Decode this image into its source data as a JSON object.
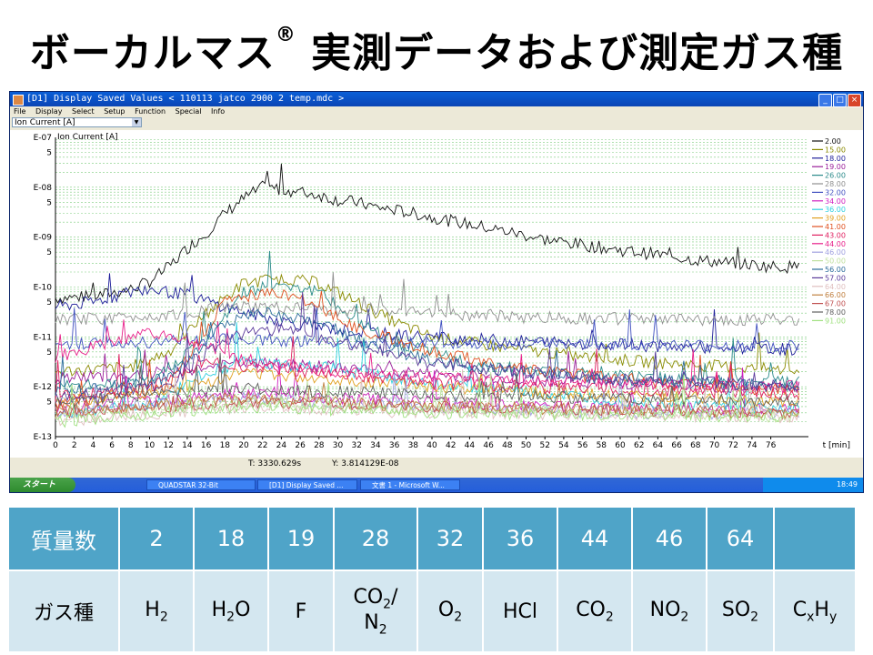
{
  "slide": {
    "title": "ボーカルマス",
    "title_mark": "®",
    "title_rest": " 実測データおよび測定ガス種"
  },
  "window": {
    "title": "[D1] Display Saved Values  < 110113 jatco 2900 2 temp.mdc >",
    "menu": [
      "File",
      "Display",
      "Select",
      "Setup",
      "Function",
      "Special",
      "Info"
    ],
    "combo_value": "Ion Current [A]",
    "status_t": "T: 3330.629s",
    "status_y": "Y: 3.814129E-08"
  },
  "taskbar": {
    "start": "スタート",
    "items": [
      "QUADSTAR 32-Bit",
      "[D1] Display Saved ...",
      "文書 1 - Microsoft W..."
    ],
    "clock": "18:49"
  },
  "chart_data": {
    "type": "line",
    "title": "Ion Current [A]",
    "xlabel": "t [min]",
    "x_ticks": [
      0,
      2,
      4,
      6,
      8,
      10,
      12,
      14,
      16,
      18,
      20,
      22,
      24,
      26,
      28,
      30,
      32,
      34,
      36,
      38,
      40,
      42,
      44,
      46,
      48,
      50,
      52,
      54,
      56,
      58,
      60,
      62,
      64,
      66,
      68,
      70,
      72,
      74,
      76
    ],
    "xlim": [
      0,
      80
    ],
    "yscale": "log",
    "ylim": [
      1e-13,
      1e-07
    ],
    "y_tick_labels": [
      "E-07",
      "5",
      "E-08",
      "5",
      "E-09",
      "5",
      "E-10",
      "5",
      "E-11",
      "5",
      "E-12",
      "5",
      "E-13"
    ],
    "grid": "horizontal dashed",
    "legend_position": "right",
    "series": [
      {
        "name": "2.00",
        "color": "#111111",
        "values": [
          [
            0,
            6e-11
          ],
          [
            4,
            6.5e-11
          ],
          [
            8,
            9e-11
          ],
          [
            10,
            1.3e-10
          ],
          [
            12,
            2.5e-10
          ],
          [
            14,
            6e-10
          ],
          [
            16,
            1.2e-09
          ],
          [
            18,
            3e-09
          ],
          [
            20,
            6e-09
          ],
          [
            22,
            1e-08
          ],
          [
            24,
            9e-09
          ],
          [
            26,
            8e-09
          ],
          [
            28,
            7e-09
          ],
          [
            30,
            5.5e-09
          ],
          [
            32,
            5e-09
          ],
          [
            34,
            4e-09
          ],
          [
            36,
            3.5e-09
          ],
          [
            38,
            3e-09
          ],
          [
            40,
            2.5e-09
          ],
          [
            44,
            1.8e-09
          ],
          [
            48,
            1.3e-09
          ],
          [
            52,
            9e-10
          ],
          [
            56,
            7e-10
          ],
          [
            60,
            5.5e-10
          ],
          [
            64,
            4.5e-10
          ],
          [
            68,
            3.5e-10
          ],
          [
            72,
            3e-10
          ],
          [
            76,
            2.6e-10
          ],
          [
            80,
            2.5e-10
          ]
        ]
      },
      {
        "name": "15.00",
        "color": "#8a8a00",
        "values": [
          [
            0,
            2e-12
          ],
          [
            8,
            2.5e-12
          ],
          [
            12,
            5e-12
          ],
          [
            16,
            3e-11
          ],
          [
            20,
            1.2e-10
          ],
          [
            24,
            1.5e-10
          ],
          [
            28,
            1.2e-10
          ],
          [
            32,
            5e-11
          ],
          [
            36,
            2e-11
          ],
          [
            40,
            1e-11
          ],
          [
            48,
            6e-12
          ],
          [
            56,
            4e-12
          ],
          [
            64,
            3e-12
          ],
          [
            72,
            2.5e-12
          ],
          [
            80,
            2e-12
          ]
        ]
      },
      {
        "name": "18.00",
        "color": "#1e1e9a",
        "values": [
          [
            0,
            4e-11
          ],
          [
            4,
            5e-11
          ],
          [
            8,
            8e-11
          ],
          [
            10,
            9e-11
          ],
          [
            14,
            7e-11
          ],
          [
            18,
            4e-11
          ],
          [
            22,
            2.5e-11
          ],
          [
            26,
            1.8e-11
          ],
          [
            30,
            1.4e-11
          ],
          [
            36,
            1.1e-11
          ],
          [
            44,
            9e-12
          ],
          [
            52,
            8e-12
          ],
          [
            60,
            7e-12
          ],
          [
            70,
            6e-12
          ],
          [
            80,
            5.5e-12
          ]
        ]
      },
      {
        "name": "19.00",
        "color": "#9a1e9a",
        "values": [
          [
            0,
            1.5e-12
          ],
          [
            10,
            1.8e-12
          ],
          [
            20,
            3e-12
          ],
          [
            30,
            2.5e-12
          ],
          [
            40,
            1.8e-12
          ],
          [
            50,
            1.4e-12
          ],
          [
            60,
            1.2e-12
          ],
          [
            70,
            1e-12
          ],
          [
            80,
            1e-12
          ]
        ]
      },
      {
        "name": "26.00",
        "color": "#2a8a8a",
        "values": [
          [
            0,
            1e-12
          ],
          [
            10,
            1.2e-12
          ],
          [
            16,
            1e-11
          ],
          [
            20,
            8e-11
          ],
          [
            24,
            1.2e-10
          ],
          [
            28,
            8e-11
          ],
          [
            32,
            2e-11
          ],
          [
            36,
            8e-12
          ],
          [
            44,
            3e-12
          ],
          [
            52,
            2e-12
          ],
          [
            64,
            1.5e-12
          ],
          [
            80,
            1.2e-12
          ]
        ]
      },
      {
        "name": "28.00",
        "color": "#909090",
        "values": [
          [
            0,
            2.2e-11
          ],
          [
            4,
            2.3e-11
          ],
          [
            8,
            2.5e-11
          ],
          [
            12,
            2.8e-11
          ],
          [
            16,
            3.5e-11
          ],
          [
            20,
            4e-11
          ],
          [
            24,
            3.8e-11
          ],
          [
            30,
            3.5e-11
          ],
          [
            40,
            3e-11
          ],
          [
            50,
            2.5e-11
          ],
          [
            60,
            2.3e-11
          ],
          [
            70,
            2.2e-11
          ],
          [
            80,
            2.2e-11
          ]
        ]
      },
      {
        "name": "32.00",
        "color": "#4050c0",
        "values": [
          [
            0,
            7e-12
          ],
          [
            10,
            8e-12
          ],
          [
            20,
            9e-12
          ],
          [
            30,
            8e-12
          ],
          [
            40,
            7.5e-12
          ],
          [
            50,
            7e-12
          ],
          [
            60,
            7e-12
          ],
          [
            70,
            6.5e-12
          ],
          [
            80,
            6.5e-12
          ]
        ]
      },
      {
        "name": "34.00",
        "color": "#d020c0",
        "values": [
          [
            0,
            4e-13
          ],
          [
            10,
            5e-13
          ],
          [
            20,
            8e-13
          ],
          [
            30,
            6e-13
          ],
          [
            40,
            5e-13
          ],
          [
            50,
            4e-13
          ],
          [
            60,
            4e-13
          ],
          [
            70,
            3.5e-13
          ],
          [
            80,
            3.5e-13
          ]
        ]
      },
      {
        "name": "36.00",
        "color": "#30d0e0",
        "values": [
          [
            0,
            3e-13
          ],
          [
            10,
            4e-13
          ],
          [
            16,
            2e-12
          ],
          [
            20,
            3e-12
          ],
          [
            28,
            2.5e-12
          ],
          [
            36,
            1.5e-12
          ],
          [
            44,
            1e-12
          ],
          [
            56,
            6e-13
          ],
          [
            70,
            4e-13
          ],
          [
            80,
            3.5e-13
          ]
        ]
      },
      {
        "name": "39.00",
        "color": "#e0a020",
        "values": [
          [
            0,
            5e-13
          ],
          [
            12,
            8e-13
          ],
          [
            20,
            2e-12
          ],
          [
            28,
            1.5e-12
          ],
          [
            40,
            1e-12
          ],
          [
            56,
            7e-13
          ],
          [
            80,
            5e-13
          ]
        ]
      },
      {
        "name": "41.00",
        "color": "#e05020",
        "values": [
          [
            0,
            4e-13
          ],
          [
            12,
            1e-12
          ],
          [
            18,
            5e-11
          ],
          [
            22,
            8e-11
          ],
          [
            26,
            6e-11
          ],
          [
            32,
            1.5e-11
          ],
          [
            40,
            5e-12
          ],
          [
            52,
            2e-12
          ],
          [
            64,
            1.2e-12
          ],
          [
            80,
            8e-13
          ]
        ]
      },
      {
        "name": "43.00",
        "color": "#e02060",
        "values": [
          [
            0,
            6e-13
          ],
          [
            10,
            1e-12
          ],
          [
            16,
            3e-12
          ],
          [
            22,
            2.5e-12
          ],
          [
            30,
            1.8e-12
          ],
          [
            40,
            1.2e-12
          ],
          [
            56,
            9e-13
          ],
          [
            80,
            7e-13
          ]
        ]
      },
      {
        "name": "44.00",
        "color": "#e8208a",
        "values": [
          [
            0,
            4e-12
          ],
          [
            4,
            6e-12
          ],
          [
            8,
            1e-11
          ],
          [
            10,
            1.2e-11
          ],
          [
            12,
            1e-11
          ],
          [
            16,
            6e-12
          ],
          [
            22,
            3e-12
          ],
          [
            30,
            2e-12
          ],
          [
            40,
            1.5e-12
          ],
          [
            56,
            1.2e-12
          ],
          [
            80,
            1e-12
          ]
        ]
      },
      {
        "name": "46.00",
        "color": "#a0a0e0",
        "values": [
          [
            0,
            3e-13
          ],
          [
            20,
            6e-13
          ],
          [
            40,
            4e-13
          ],
          [
            60,
            3e-13
          ],
          [
            80,
            3e-13
          ]
        ]
      },
      {
        "name": "50.00",
        "color": "#c0e0a0",
        "values": [
          [
            0,
            2.5e-13
          ],
          [
            20,
            5e-13
          ],
          [
            40,
            3.5e-13
          ],
          [
            60,
            3e-13
          ],
          [
            80,
            2.5e-13
          ]
        ]
      },
      {
        "name": "56.00",
        "color": "#2a6a9a",
        "values": [
          [
            0,
            8e-13
          ],
          [
            12,
            1.5e-12
          ],
          [
            18,
            2e-11
          ],
          [
            22,
            3e-11
          ],
          [
            28,
            2e-11
          ],
          [
            34,
            6e-12
          ],
          [
            44,
            2.5e-12
          ],
          [
            56,
            1.5e-12
          ],
          [
            80,
            1e-12
          ]
        ]
      },
      {
        "name": "57.00",
        "color": "#5a3a9a",
        "values": [
          [
            0,
            6e-13
          ],
          [
            12,
            1e-12
          ],
          [
            18,
            1e-11
          ],
          [
            24,
            1.5e-11
          ],
          [
            30,
            8e-12
          ],
          [
            40,
            3e-12
          ],
          [
            56,
            1.5e-12
          ],
          [
            80,
            1e-12
          ]
        ]
      },
      {
        "name": "64.00",
        "color": "#e0c0c0",
        "values": [
          [
            0,
            2e-13
          ],
          [
            20,
            4e-13
          ],
          [
            40,
            3e-13
          ],
          [
            80,
            2.5e-13
          ]
        ]
      },
      {
        "name": "66.00",
        "color": "#c08040",
        "values": [
          [
            0,
            3e-13
          ],
          [
            20,
            6e-13
          ],
          [
            40,
            4e-13
          ],
          [
            80,
            3e-13
          ]
        ]
      },
      {
        "name": "67.00",
        "color": "#c05050",
        "values": [
          [
            0,
            3e-13
          ],
          [
            20,
            5e-13
          ],
          [
            40,
            4e-13
          ],
          [
            80,
            3e-13
          ]
        ]
      },
      {
        "name": "78.00",
        "color": "#606060",
        "values": [
          [
            0,
            5e-13
          ],
          [
            20,
            9e-13
          ],
          [
            40,
            7e-13
          ],
          [
            80,
            5e-13
          ]
        ]
      },
      {
        "name": "91.00",
        "color": "#a0e080",
        "values": [
          [
            0,
            2e-13
          ],
          [
            20,
            4e-13
          ],
          [
            40,
            3e-13
          ],
          [
            80,
            2.5e-13
          ]
        ]
      }
    ]
  },
  "table": {
    "head_label": "質量数",
    "body_label": "ガス種",
    "masses": [
      "2",
      "18",
      "19",
      "28",
      "32",
      "36",
      "44",
      "46",
      "64",
      ""
    ],
    "gases": [
      {
        "base": "H",
        "sub": "2",
        "tail": ""
      },
      {
        "base": "H",
        "sub": "2",
        "tail": "O"
      },
      {
        "base": "F",
        "sub": "",
        "tail": ""
      },
      {
        "base": "CO",
        "sub": "2",
        "tail": "/",
        "line2": "N",
        "line2_sub": "2"
      },
      {
        "base": "O",
        "sub": "2",
        "tail": ""
      },
      {
        "base": "HCl",
        "sub": "",
        "tail": ""
      },
      {
        "base": "CO",
        "sub": "2",
        "tail": ""
      },
      {
        "base": "NO",
        "sub": "2",
        "tail": ""
      },
      {
        "base": "SO",
        "sub": "2",
        "tail": ""
      },
      {
        "base": "C",
        "sub": "x",
        "tail": "H",
        "tail_sub": "y"
      }
    ]
  }
}
